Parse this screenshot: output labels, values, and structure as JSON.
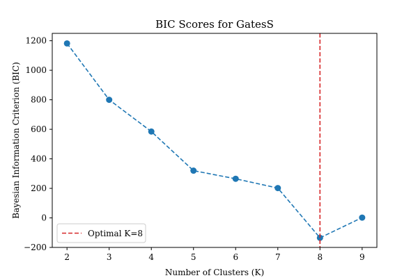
{
  "chart_data": {
    "type": "line",
    "title": "BIC Scores for GatesS",
    "xlabel": "Number of Clusters (K)",
    "ylabel": "Bayesian Information Criterion (BIC)",
    "x": [
      2,
      3,
      4,
      5,
      6,
      7,
      8,
      9
    ],
    "series": [
      {
        "values": [
          1182,
          800,
          585,
          320,
          265,
          202,
          -135,
          2
        ],
        "color": "#1f77b4",
        "line_style": "dashed",
        "marker": "circle"
      }
    ],
    "xlim": [
      1.65,
      9.35
    ],
    "ylim": [
      -200,
      1250
    ],
    "xticks": [
      2,
      3,
      4,
      5,
      6,
      7,
      8,
      9
    ],
    "yticks": [
      -200,
      0,
      200,
      400,
      600,
      800,
      1000,
      1200
    ],
    "vline": {
      "x": 8,
      "color": "#d62728",
      "label": "Optimal K=8",
      "line_style": "dashed"
    },
    "legend": {
      "placement": "lower-left",
      "entries": [
        "Optimal K=8"
      ]
    },
    "grid": false
  }
}
